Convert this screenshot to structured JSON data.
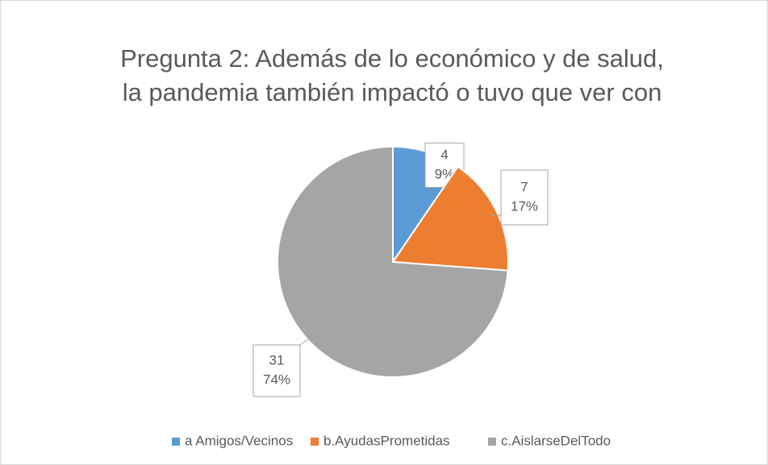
{
  "chart_data": {
    "type": "pie",
    "title": [
      "Pregunta 2:  Además de lo económico y de salud,",
      "la pandemia también impactó o tuvo que ver con"
    ],
    "categories": [
      "a Amigos/Vecinos",
      "b.AyudasPrometidas",
      "c.AislarseDelTodo"
    ],
    "values": [
      4,
      7,
      31
    ],
    "percent_labels": [
      "9%",
      "17%",
      "74%"
    ],
    "colors": [
      "#5b9bd5",
      "#ed7d31",
      "#a5a5a5"
    ],
    "legend": "bottom"
  }
}
